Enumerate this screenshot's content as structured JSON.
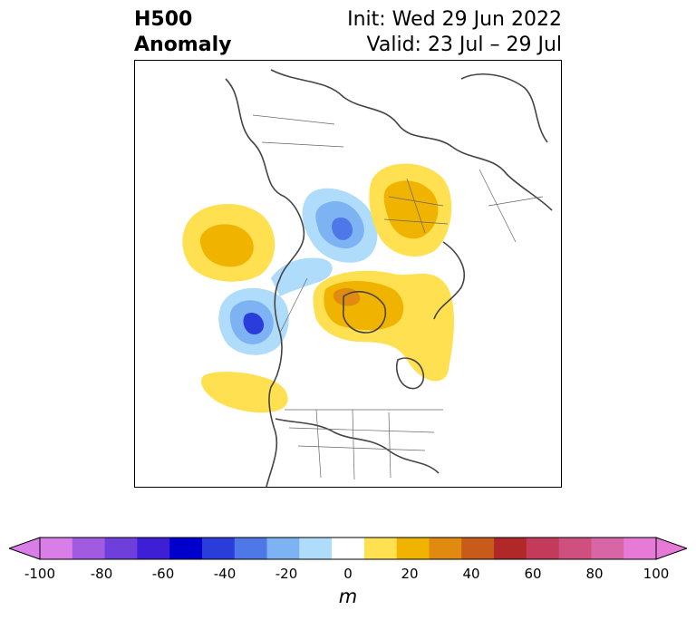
{
  "title": {
    "left_line1": "H500",
    "left_line2": "Anomaly",
    "right_line1": "Init: Wed 29 Jun 2022",
    "right_line2": "Valid: 23 Jul – 29 Jul"
  },
  "colorbar": {
    "unit": "m",
    "ticks": [
      "-100",
      "-80",
      "-60",
      "-40",
      "-20",
      "0",
      "20",
      "40",
      "60",
      "80",
      "100"
    ],
    "bins": [
      "#d97de8",
      "#a05be0",
      "#6f3fdc",
      "#3f1fd6",
      "#0000cc",
      "#2a3ddb",
      "#4e78e8",
      "#7db3f2",
      "#aedcfa",
      "#ffffff",
      "#ffe050",
      "#f0b400",
      "#e08a10",
      "#c85a1a",
      "#b02828",
      "#c43a5a",
      "#cf4f7e",
      "#d866a6",
      "#e67ad6"
    ]
  },
  "legend_colors": {
    "pos_low": "#ffe050",
    "pos_mid": "#f0b400",
    "pos_high": "#e08a10",
    "neg_low": "#aedcfa",
    "neg_mid": "#7db3f2",
    "neg_high": "#4e78e8",
    "neg_core": "#2a3ddb"
  }
}
